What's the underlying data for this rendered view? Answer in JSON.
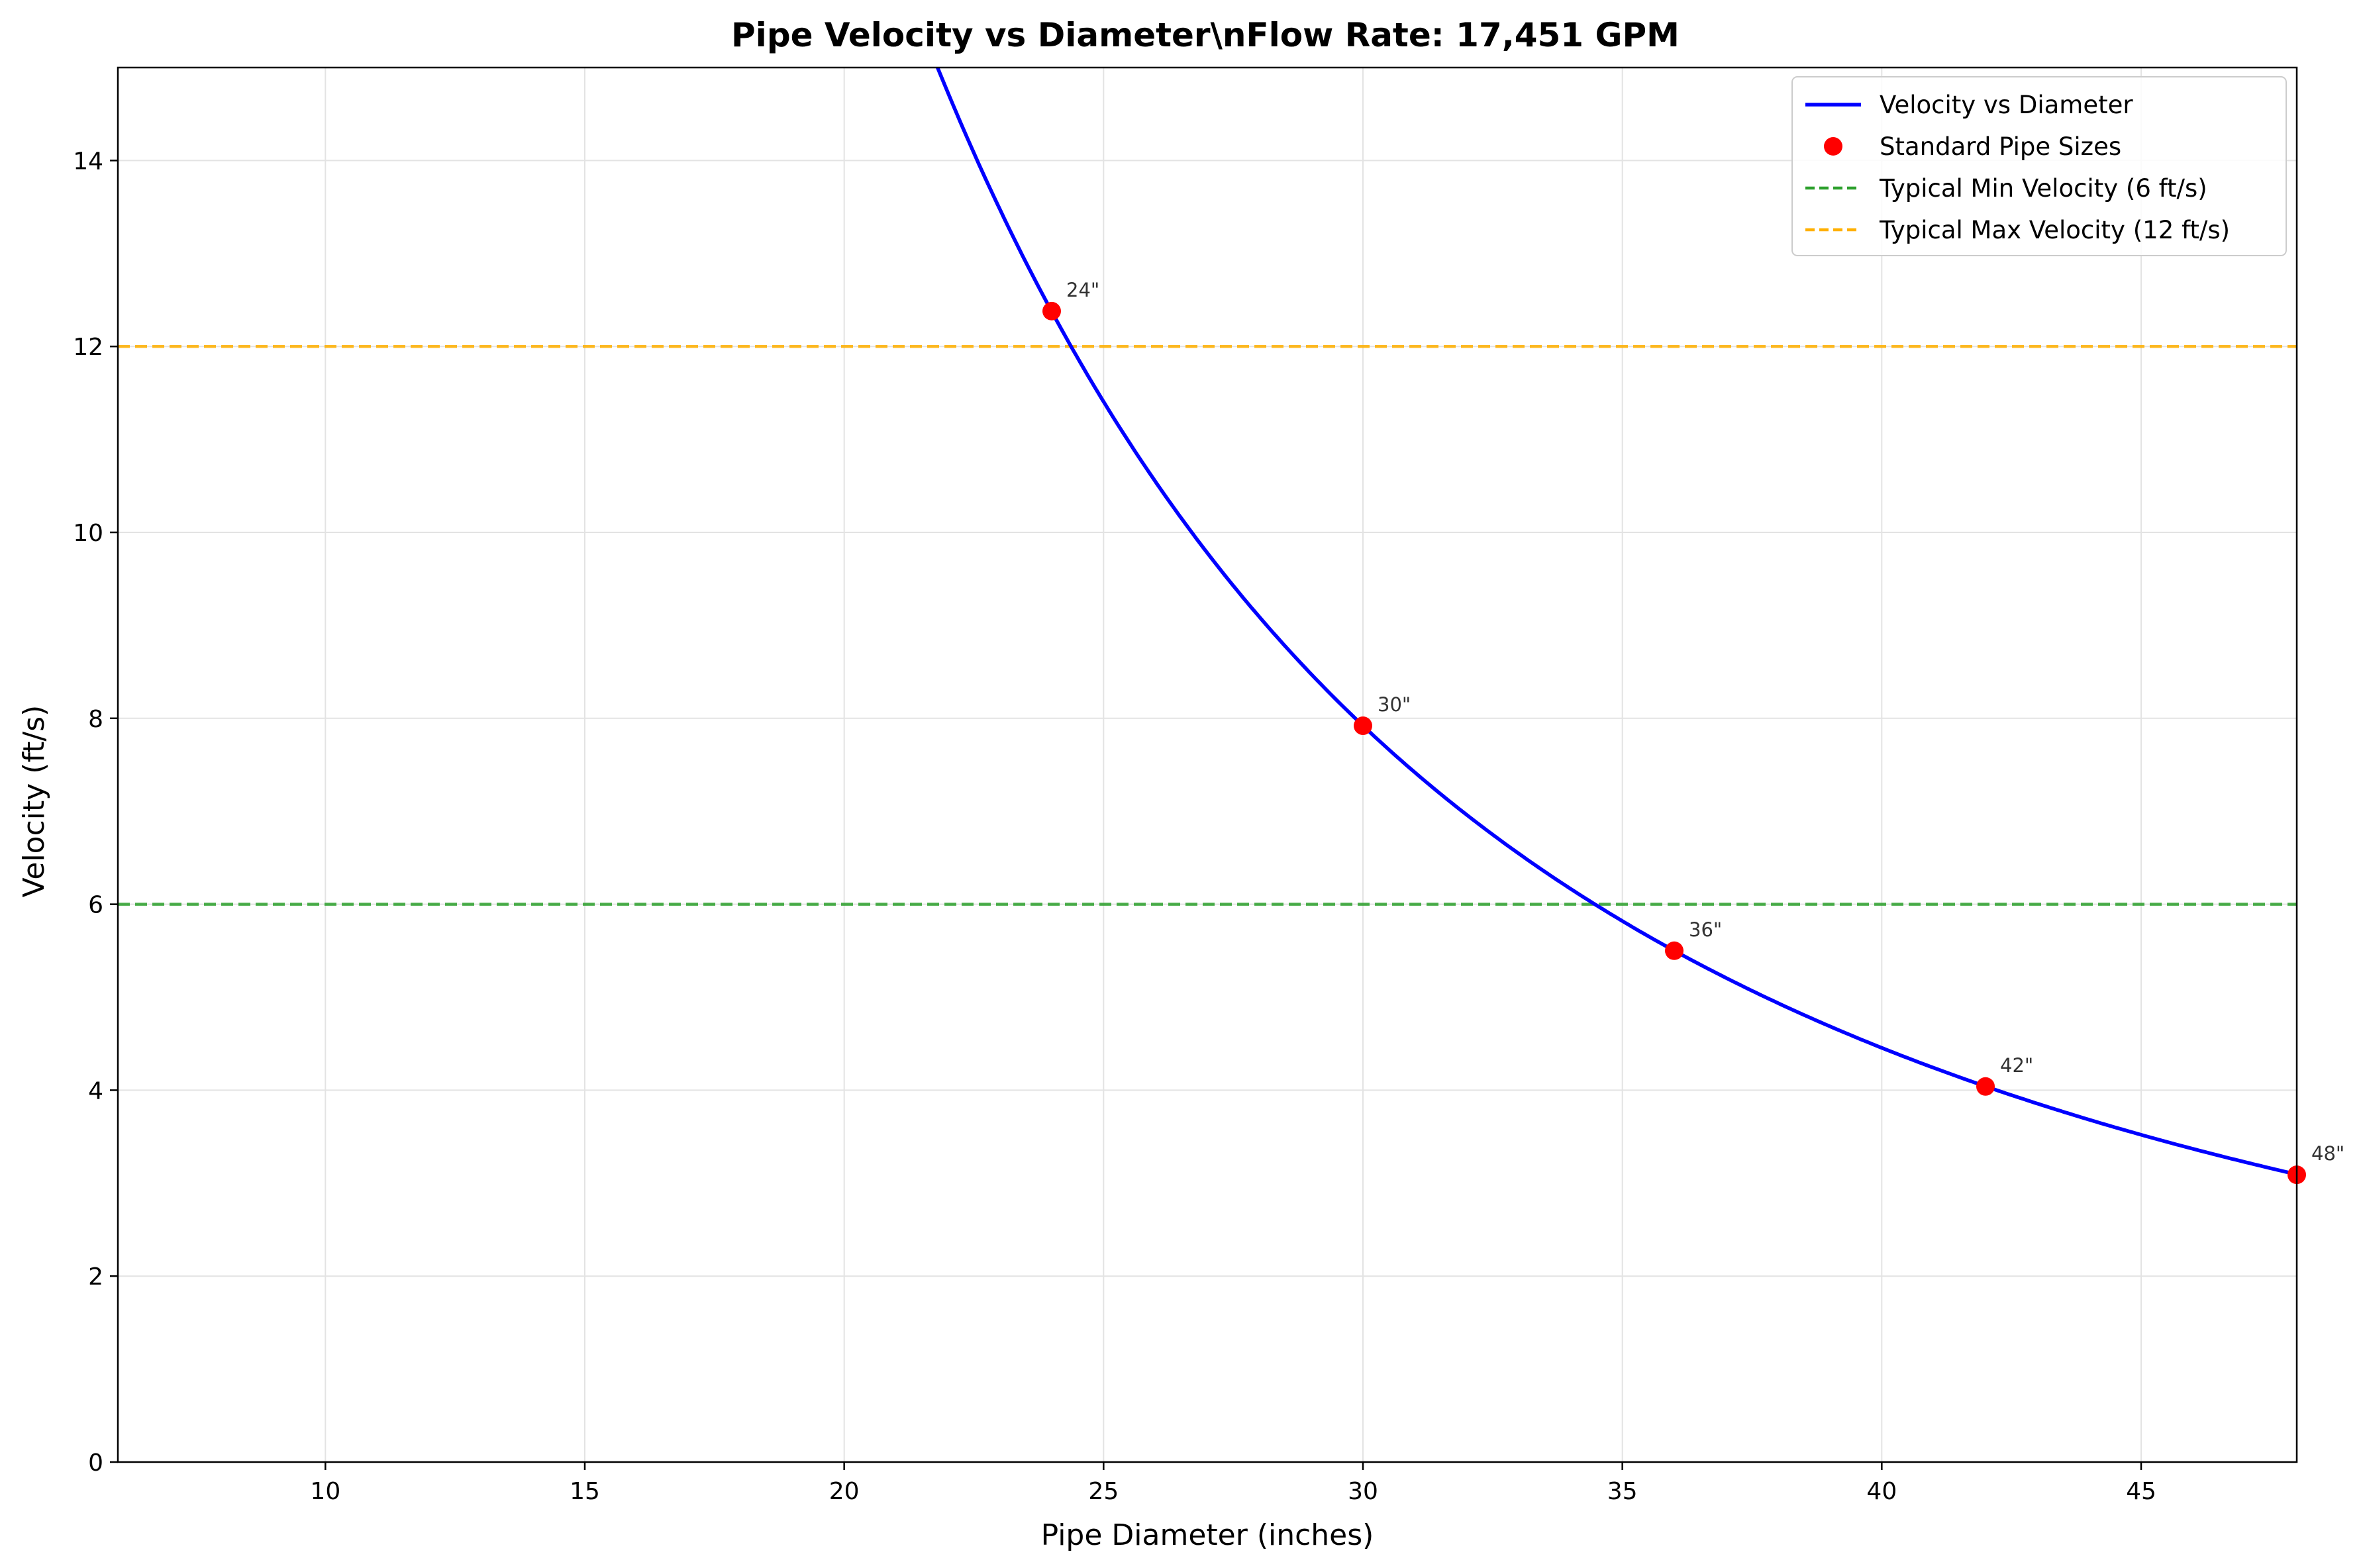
{
  "chart_data": {
    "type": "line",
    "title": "Pipe Velocity vs Diameter\\nFlow Rate: 17,451 GPM",
    "xlabel": "Pipe Diameter (inches)",
    "ylabel": "Velocity (ft/s)",
    "xlim": [
      6,
      48
    ],
    "ylim": [
      0,
      15
    ],
    "xticks": [
      10,
      15,
      20,
      25,
      30,
      35,
      40,
      45
    ],
    "yticks": [
      0,
      2,
      4,
      6,
      8,
      10,
      12,
      14
    ],
    "grid": true,
    "legend_position": "top-right",
    "flow_rate_gpm": 17451,
    "curve": {
      "name": "Velocity vs Diameter",
      "color": "#0000ff",
      "formula": "velocity = 0.4085 * flow_gpm / diameter^2"
    },
    "standard_sizes": {
      "name": "Standard Pipe Sizes",
      "color": "#ff0000",
      "points": [
        {
          "x": 24,
          "y": 12.38,
          "label": "24\""
        },
        {
          "x": 30,
          "y": 7.92,
          "label": "30\""
        },
        {
          "x": 36,
          "y": 5.5,
          "label": "36\""
        },
        {
          "x": 42,
          "y": 4.04,
          "label": "42\""
        },
        {
          "x": 48,
          "y": 3.09,
          "label": "48\""
        }
      ]
    },
    "reference_lines": [
      {
        "name": "Typical Min Velocity (6 ft/s)",
        "y": 6,
        "color": "#2ca02c"
      },
      {
        "name": "Typical Max Velocity (12 ft/s)",
        "y": 12,
        "color": "#ffb000"
      }
    ]
  }
}
